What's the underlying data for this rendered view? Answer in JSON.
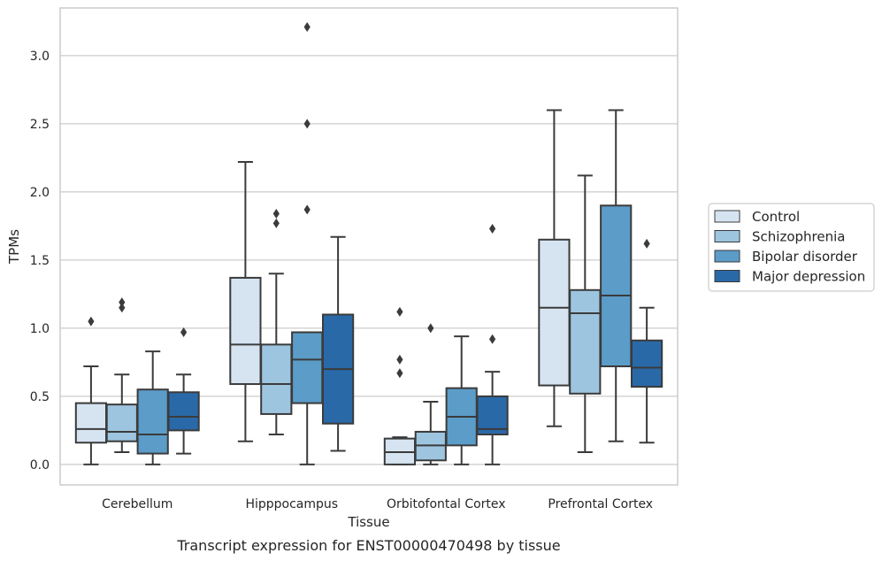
{
  "chart_data": {
    "type": "box",
    "xlabel": "Tissue",
    "ylabel": "TPMs",
    "caption": "Transcript expression for ENST00000470498 by tissue",
    "categories": [
      "Cerebellum",
      "Hipppocampus",
      "Orbitofontal Cortex",
      "Prefrontal Cortex"
    ],
    "ylim": [
      -0.15,
      3.35
    ],
    "yticks": [
      "0.0",
      "0.5",
      "1.0",
      "1.5",
      "2.0",
      "2.5",
      "3.0"
    ],
    "grid": "horizontal",
    "legend_position": "right",
    "series": [
      {
        "name": "Control",
        "color": "#d6e4f2",
        "boxes": [
          {
            "whisker_low": 0.0,
            "q1": 0.16,
            "median": 0.26,
            "q3": 0.45,
            "whisker_high": 0.72,
            "outliers": [
              1.05
            ]
          },
          {
            "whisker_low": 0.17,
            "q1": 0.59,
            "median": 0.88,
            "q3": 1.37,
            "whisker_high": 2.22,
            "outliers": []
          },
          {
            "whisker_low": 0.0,
            "q1": 0.0,
            "median": 0.09,
            "q3": 0.19,
            "whisker_high": 0.2,
            "outliers": [
              0.67,
              0.77,
              1.12
            ]
          },
          {
            "whisker_low": 0.28,
            "q1": 0.58,
            "median": 1.15,
            "q3": 1.65,
            "whisker_high": 2.6,
            "outliers": []
          }
        ]
      },
      {
        "name": "Schizophrenia",
        "color": "#9ec5df",
        "boxes": [
          {
            "whisker_low": 0.09,
            "q1": 0.17,
            "median": 0.24,
            "q3": 0.44,
            "whisker_high": 0.66,
            "outliers": [
              1.15,
              1.19
            ]
          },
          {
            "whisker_low": 0.22,
            "q1": 0.37,
            "median": 0.59,
            "q3": 0.88,
            "whisker_high": 1.4,
            "outliers": [
              1.77,
              1.84
            ]
          },
          {
            "whisker_low": 0.0,
            "q1": 0.03,
            "median": 0.14,
            "q3": 0.24,
            "whisker_high": 0.46,
            "outliers": [
              1.0
            ]
          },
          {
            "whisker_low": 0.09,
            "q1": 0.52,
            "median": 1.11,
            "q3": 1.28,
            "whisker_high": 2.12,
            "outliers": []
          }
        ]
      },
      {
        "name": "Bipolar disorder",
        "color": "#5b9cc8",
        "boxes": [
          {
            "whisker_low": 0.0,
            "q1": 0.08,
            "median": 0.22,
            "q3": 0.55,
            "whisker_high": 0.83,
            "outliers": []
          },
          {
            "whisker_low": 0.0,
            "q1": 0.45,
            "median": 0.77,
            "q3": 0.97,
            "whisker_high": 0.97,
            "outliers": [
              1.87,
              2.5,
              3.21
            ]
          },
          {
            "whisker_low": 0.0,
            "q1": 0.14,
            "median": 0.35,
            "q3": 0.56,
            "whisker_high": 0.94,
            "outliers": []
          },
          {
            "whisker_low": 0.17,
            "q1": 0.72,
            "median": 1.24,
            "q3": 1.9,
            "whisker_high": 2.6,
            "outliers": []
          }
        ]
      },
      {
        "name": "Major depression",
        "color": "#2a69a8",
        "boxes": [
          {
            "whisker_low": 0.08,
            "q1": 0.25,
            "median": 0.35,
            "q3": 0.53,
            "whisker_high": 0.66,
            "outliers": [
              0.97
            ]
          },
          {
            "whisker_low": 0.1,
            "q1": 0.3,
            "median": 0.7,
            "q3": 1.1,
            "whisker_high": 1.67,
            "outliers": []
          },
          {
            "whisker_low": 0.0,
            "q1": 0.22,
            "median": 0.26,
            "q3": 0.5,
            "whisker_high": 0.68,
            "outliers": [
              0.92,
              1.73
            ]
          },
          {
            "whisker_low": 0.16,
            "q1": 0.57,
            "median": 0.71,
            "q3": 0.91,
            "whisker_high": 1.15,
            "outliers": [
              1.62
            ]
          }
        ]
      }
    ]
  }
}
